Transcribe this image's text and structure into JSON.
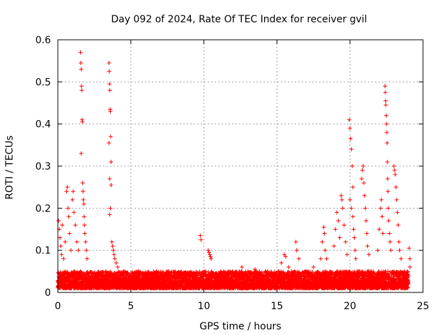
{
  "chart_data": {
    "type": "scatter",
    "title": "Day 092 of 2024, Rate Of TEC Index for receiver gvil",
    "xlabel": "GPS time / hours",
    "ylabel": "ROTI / TECUs",
    "xlim": [
      0,
      25
    ],
    "ylim": [
      0,
      0.6
    ],
    "xticks": [
      0,
      5,
      10,
      15,
      20,
      25
    ],
    "yticks": [
      0,
      0.1,
      0.2,
      0.3,
      0.4,
      0.5,
      0.6
    ],
    "xtick_labels": [
      "0",
      "5",
      "10",
      "15",
      "20",
      "25"
    ],
    "ytick_labels": [
      "0",
      "0.1",
      "0.2",
      "0.3",
      "0.4",
      "0.5",
      "0.6"
    ],
    "grid": true,
    "marker": "+",
    "color": "#ff0000",
    "baseline": {
      "x_range": [
        0,
        24
      ],
      "typical_range": [
        0.01,
        0.05
      ]
    },
    "series": [
      {
        "name": "ROTI",
        "points": [
          [
            0.05,
            0.17
          ],
          [
            0.1,
            0.15
          ],
          [
            0.15,
            0.13
          ],
          [
            0.2,
            0.11
          ],
          [
            0.25,
            0.09
          ],
          [
            0.3,
            0.16
          ],
          [
            0.4,
            0.08
          ],
          [
            0.5,
            0.12
          ],
          [
            0.6,
            0.24
          ],
          [
            0.65,
            0.25
          ],
          [
            0.7,
            0.2
          ],
          [
            0.75,
            0.18
          ],
          [
            0.8,
            0.14
          ],
          [
            0.9,
            0.1
          ],
          [
            1.0,
            0.22
          ],
          [
            1.05,
            0.24
          ],
          [
            1.1,
            0.19
          ],
          [
            1.2,
            0.16
          ],
          [
            1.3,
            0.12
          ],
          [
            1.4,
            0.1
          ],
          [
            1.55,
            0.57
          ],
          [
            1.57,
            0.545
          ],
          [
            1.6,
            0.53
          ],
          [
            1.62,
            0.49
          ],
          [
            1.64,
            0.48
          ],
          [
            1.66,
            0.41
          ],
          [
            1.68,
            0.405
          ],
          [
            1.6,
            0.33
          ],
          [
            1.7,
            0.26
          ],
          [
            1.72,
            0.24
          ],
          [
            1.75,
            0.22
          ],
          [
            1.78,
            0.21
          ],
          [
            1.8,
            0.18
          ],
          [
            1.82,
            0.16
          ],
          [
            1.85,
            0.14
          ],
          [
            1.9,
            0.12
          ],
          [
            1.95,
            0.1
          ],
          [
            2.0,
            0.08
          ],
          [
            3.5,
            0.545
          ],
          [
            3.52,
            0.525
          ],
          [
            3.54,
            0.495
          ],
          [
            3.56,
            0.48
          ],
          [
            3.58,
            0.435
          ],
          [
            3.6,
            0.43
          ],
          [
            3.62,
            0.37
          ],
          [
            3.5,
            0.355
          ],
          [
            3.64,
            0.31
          ],
          [
            3.55,
            0.27
          ],
          [
            3.65,
            0.255
          ],
          [
            3.6,
            0.2
          ],
          [
            3.55,
            0.185
          ],
          [
            3.7,
            0.12
          ],
          [
            3.75,
            0.11
          ],
          [
            3.8,
            0.1
          ],
          [
            3.85,
            0.09
          ],
          [
            3.9,
            0.08
          ],
          [
            4.0,
            0.07
          ],
          [
            4.1,
            0.06
          ],
          [
            9.75,
            0.135
          ],
          [
            9.8,
            0.125
          ],
          [
            10.3,
            0.1
          ],
          [
            10.35,
            0.095
          ],
          [
            10.4,
            0.09
          ],
          [
            10.45,
            0.085
          ],
          [
            10.5,
            0.08
          ],
          [
            12.6,
            0.06
          ],
          [
            13.5,
            0.055
          ],
          [
            14.2,
            0.05
          ],
          [
            15.3,
            0.07
          ],
          [
            15.5,
            0.09
          ],
          [
            15.6,
            0.085
          ],
          [
            15.8,
            0.06
          ],
          [
            16.0,
            0.05
          ],
          [
            16.3,
            0.12
          ],
          [
            16.35,
            0.1
          ],
          [
            16.5,
            0.08
          ],
          [
            17.0,
            0.05
          ],
          [
            17.5,
            0.06
          ],
          [
            18.0,
            0.08
          ],
          [
            18.1,
            0.12
          ],
          [
            18.2,
            0.155
          ],
          [
            18.25,
            0.14
          ],
          [
            18.3,
            0.1
          ],
          [
            18.4,
            0.08
          ],
          [
            18.9,
            0.11
          ],
          [
            19.0,
            0.15
          ],
          [
            19.1,
            0.19
          ],
          [
            19.2,
            0.17
          ],
          [
            19.3,
            0.13
          ],
          [
            19.4,
            0.23
          ],
          [
            19.45,
            0.22
          ],
          [
            19.5,
            0.2
          ],
          [
            19.6,
            0.16
          ],
          [
            19.7,
            0.12
          ],
          [
            19.8,
            0.09
          ],
          [
            19.95,
            0.41
          ],
          [
            20.0,
            0.39
          ],
          [
            20.05,
            0.365
          ],
          [
            20.1,
            0.34
          ],
          [
            20.15,
            0.3
          ],
          [
            20.2,
            0.25
          ],
          [
            20.0,
            0.22
          ],
          [
            20.1,
            0.2
          ],
          [
            20.2,
            0.18
          ],
          [
            20.25,
            0.15
          ],
          [
            20.3,
            0.13
          ],
          [
            20.35,
            0.1
          ],
          [
            20.4,
            0.08
          ],
          [
            20.8,
            0.27
          ],
          [
            20.85,
            0.29
          ],
          [
            20.9,
            0.3
          ],
          [
            20.95,
            0.26
          ],
          [
            21.0,
            0.23
          ],
          [
            21.05,
            0.2
          ],
          [
            21.1,
            0.17
          ],
          [
            21.15,
            0.14
          ],
          [
            21.2,
            0.11
          ],
          [
            21.3,
            0.09
          ],
          [
            21.9,
            0.1
          ],
          [
            22.0,
            0.15
          ],
          [
            22.1,
            0.2
          ],
          [
            22.15,
            0.22
          ],
          [
            22.2,
            0.18
          ],
          [
            22.25,
            0.14
          ],
          [
            22.4,
            0.49
          ],
          [
            22.42,
            0.475
          ],
          [
            22.44,
            0.455
          ],
          [
            22.46,
            0.445
          ],
          [
            22.48,
            0.42
          ],
          [
            22.5,
            0.4
          ],
          [
            22.52,
            0.38
          ],
          [
            22.54,
            0.355
          ],
          [
            22.56,
            0.31
          ],
          [
            22.58,
            0.27
          ],
          [
            22.6,
            0.24
          ],
          [
            22.62,
            0.2
          ],
          [
            22.65,
            0.17
          ],
          [
            22.7,
            0.14
          ],
          [
            22.75,
            0.12
          ],
          [
            22.8,
            0.1
          ],
          [
            23.0,
            0.3
          ],
          [
            23.05,
            0.29
          ],
          [
            23.1,
            0.28
          ],
          [
            23.15,
            0.25
          ],
          [
            23.2,
            0.22
          ],
          [
            23.25,
            0.19
          ],
          [
            23.3,
            0.16
          ],
          [
            23.35,
            0.12
          ],
          [
            23.4,
            0.1
          ],
          [
            23.5,
            0.08
          ],
          [
            24.05,
            0.105
          ],
          [
            24.1,
            0.08
          ],
          [
            24.1,
            0.06
          ]
        ]
      }
    ]
  }
}
